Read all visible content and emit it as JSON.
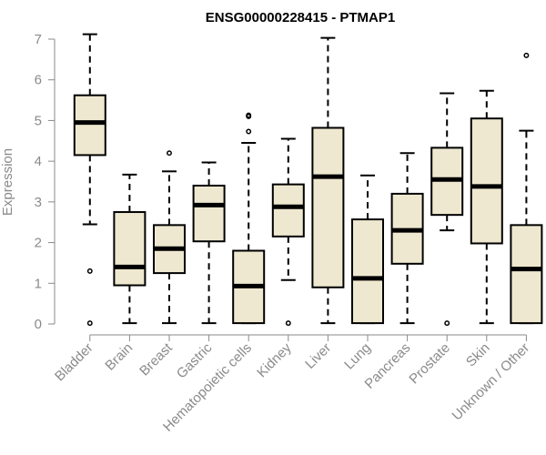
{
  "chart_data": {
    "type": "boxplot",
    "title": "ENSG00000228415 - PTMAP1",
    "xlabel": "",
    "ylabel": "Expression",
    "ylim": [
      0,
      7
    ],
    "yticks": [
      0,
      1,
      2,
      3,
      4,
      5,
      6,
      7
    ],
    "grid": false,
    "colors": {
      "box_fill": "#efe8d0",
      "stroke": "#000000",
      "axis": "#8a8a8a"
    },
    "categories": [
      "Bladder",
      "Brain",
      "Breast",
      "Gastric",
      "Hematopoietic cells",
      "Kidney",
      "Liver",
      "Lung",
      "Pancreas",
      "Prostate",
      "Skin",
      "Unknown / Other"
    ],
    "boxes": [
      {
        "name": "Bladder",
        "whisker_low": 2.45,
        "q1": 4.15,
        "median": 4.95,
        "q3": 5.62,
        "whisker_high": 7.12,
        "outliers": [
          1.3,
          0.02
        ]
      },
      {
        "name": "Brain",
        "whisker_low": 0.02,
        "q1": 0.95,
        "median": 1.4,
        "q3": 2.75,
        "whisker_high": 3.67,
        "outliers": []
      },
      {
        "name": "Breast",
        "whisker_low": 0.02,
        "q1": 1.25,
        "median": 1.85,
        "q3": 2.43,
        "whisker_high": 3.75,
        "outliers": [
          4.2
        ]
      },
      {
        "name": "Gastric",
        "whisker_low": 0.02,
        "q1": 2.03,
        "median": 2.92,
        "q3": 3.4,
        "whisker_high": 3.97,
        "outliers": []
      },
      {
        "name": "Hematopoietic cells",
        "whisker_low": 0.02,
        "q1": 0.02,
        "median": 0.93,
        "q3": 1.8,
        "whisker_high": 4.45,
        "outliers": [
          4.73,
          5.1,
          5.13
        ]
      },
      {
        "name": "Kidney",
        "whisker_low": 1.08,
        "q1": 2.15,
        "median": 2.88,
        "q3": 3.43,
        "whisker_high": 4.55,
        "outliers": [
          0.02
        ]
      },
      {
        "name": "Liver",
        "whisker_low": 0.02,
        "q1": 0.9,
        "median": 3.62,
        "q3": 4.82,
        "whisker_high": 7.03,
        "outliers": []
      },
      {
        "name": "Lung",
        "whisker_low": 0.02,
        "q1": 0.02,
        "median": 1.12,
        "q3": 2.57,
        "whisker_high": 3.65,
        "outliers": []
      },
      {
        "name": "Pancreas",
        "whisker_low": 0.02,
        "q1": 1.48,
        "median": 2.3,
        "q3": 3.2,
        "whisker_high": 4.2,
        "outliers": []
      },
      {
        "name": "Prostate",
        "whisker_low": 2.3,
        "q1": 2.68,
        "median": 3.55,
        "q3": 4.33,
        "whisker_high": 5.67,
        "outliers": [
          0.02
        ]
      },
      {
        "name": "Skin",
        "whisker_low": 0.02,
        "q1": 1.98,
        "median": 3.38,
        "q3": 5.05,
        "whisker_high": 5.73,
        "outliers": []
      },
      {
        "name": "Unknown / Other",
        "whisker_low": 0.02,
        "q1": 0.02,
        "median": 1.35,
        "q3": 2.43,
        "whisker_high": 4.75,
        "outliers": [
          6.6
        ]
      }
    ]
  }
}
